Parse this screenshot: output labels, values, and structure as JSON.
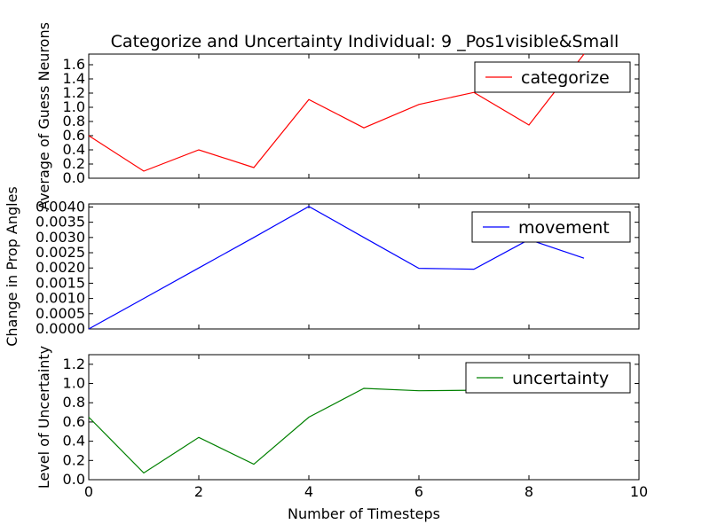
{
  "figure": {
    "title": "Categorize and Uncertainty Individual: 9 _Pos1visible&Small",
    "xlabel": "Number of Timesteps"
  },
  "chart_data": [
    {
      "type": "line",
      "ylabel": "Average of Guess Neurons",
      "x": [
        0,
        1,
        2,
        3,
        4,
        5,
        6,
        7,
        8,
        9
      ],
      "series": [
        {
          "name": "categorize",
          "color": "#ff0000",
          "values": [
            0.6,
            0.1,
            0.4,
            0.15,
            1.11,
            0.71,
            1.04,
            1.21,
            0.75,
            1.75
          ]
        }
      ],
      "xlim": [
        0,
        10
      ],
      "ylim": [
        0,
        1.75
      ],
      "yticks": [
        "0.0",
        "0.2",
        "0.4",
        "0.6",
        "0.8",
        "1.0",
        "1.2",
        "1.4",
        "1.6"
      ],
      "ytick_values": [
        0,
        0.2,
        0.4,
        0.6,
        0.8,
        1.0,
        1.2,
        1.4,
        1.6
      ],
      "xticks_visible": false,
      "legend": "top-right"
    },
    {
      "type": "line",
      "ylabel": "Change in Prop Angles",
      "x": [
        0,
        1,
        2,
        3,
        4,
        5,
        6,
        7,
        8,
        9
      ],
      "series": [
        {
          "name": "movement",
          "color": "#0000ff",
          "values": [
            0.0,
            0.001,
            0.002,
            0.003,
            0.00402,
            0.003,
            0.00199,
            0.00196,
            0.00293,
            0.00232
          ]
        }
      ],
      "xlim": [
        0,
        10
      ],
      "ylim": [
        0,
        0.0041
      ],
      "yticks": [
        "0.0000",
        "0.0005",
        "0.0010",
        "0.0015",
        "0.0020",
        "0.0025",
        "0.0030",
        "0.0035",
        "0.0040"
      ],
      "ytick_values": [
        0,
        0.0005,
        0.001,
        0.0015,
        0.002,
        0.0025,
        0.003,
        0.0035,
        0.004
      ],
      "xticks_visible": false,
      "legend": "top-right"
    },
    {
      "type": "line",
      "ylabel": "Level of Uncertainty",
      "x": [
        0,
        1,
        2,
        3,
        4,
        5,
        6,
        7,
        8,
        9
      ],
      "series": [
        {
          "name": "uncertainty",
          "color": "#008000",
          "values": [
            0.65,
            0.07,
            0.44,
            0.16,
            0.65,
            0.95,
            0.925,
            0.93,
            0.935,
            0.96
          ]
        }
      ],
      "xlim": [
        0,
        10
      ],
      "ylim": [
        0,
        1.3
      ],
      "yticks": [
        "0.0",
        "0.2",
        "0.4",
        "0.6",
        "0.8",
        "1.0",
        "1.2"
      ],
      "ytick_values": [
        0,
        0.2,
        0.4,
        0.6,
        0.8,
        1.0,
        1.2
      ],
      "xticks": [
        "0",
        "2",
        "4",
        "6",
        "8",
        "10"
      ],
      "xtick_values": [
        0,
        2,
        4,
        6,
        8,
        10
      ],
      "xticks_visible": true,
      "legend": "top-right"
    }
  ]
}
